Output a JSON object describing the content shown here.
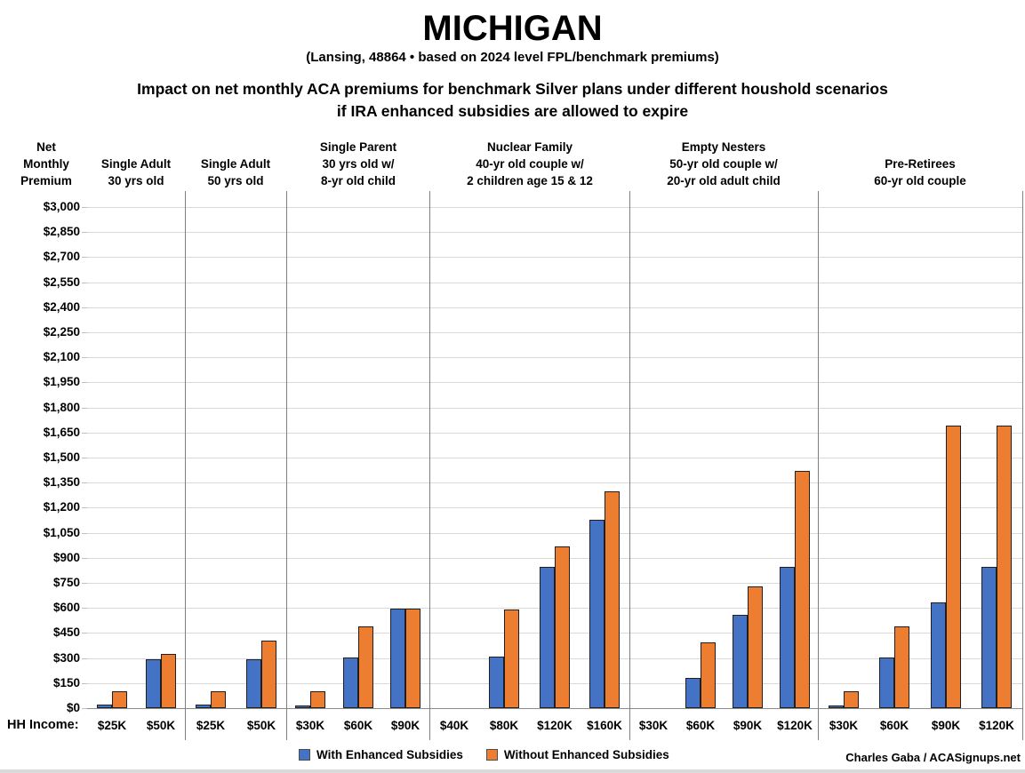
{
  "header": {
    "title": "MICHIGAN",
    "subtitle": "(Lansing, 48864 • based on 2024 level FPL/benchmark premiums)",
    "heading_line1": "Impact on net monthly ACA premiums for benchmark Silver plans under different houshold scenarios",
    "heading_line2": "if IRA enhanced subsidies are allowed to expire"
  },
  "chart_data": {
    "type": "bar",
    "title": "Impact on net monthly ACA premiums for benchmark Silver plans under different houshold scenarios if IRA enhanced subsidies are allowed to expire",
    "y_axis": {
      "label": "Net\nMonthly\nPremium",
      "min": 0,
      "max": 3000,
      "step": 150,
      "ticks": [
        "$0",
        "$150",
        "$300",
        "$450",
        "$600",
        "$750",
        "$900",
        "$1,050",
        "$1,200",
        "$1,350",
        "$1,500",
        "$1,650",
        "$1,800",
        "$1,950",
        "$2,100",
        "$2,250",
        "$2,400",
        "$2,550",
        "$2,700",
        "$2,850",
        "$3,000"
      ]
    },
    "x_axis_label": "HH Income:",
    "grid": true,
    "legend_position": "bottom",
    "series": [
      {
        "name": "With Enhanced Subsidies",
        "color": "#4472C4"
      },
      {
        "name": "Without Enhanced Subsidies",
        "color": "#ED7D31"
      }
    ],
    "groups": [
      {
        "header_lines": [
          "Single Adult",
          "30 yrs old"
        ],
        "categories": [
          "$25K",
          "$50K"
        ],
        "with_enhanced": [
          20,
          295
        ],
        "without_enhanced": [
          100,
          325
        ]
      },
      {
        "header_lines": [
          "Single Adult",
          "50 yrs old"
        ],
        "categories": [
          "$25K",
          "$50K"
        ],
        "with_enhanced": [
          20,
          295
        ],
        "without_enhanced": [
          100,
          405
        ]
      },
      {
        "header_lines": [
          "Single Parent",
          "30 yrs old w/",
          "8-yr old child"
        ],
        "categories": [
          "$30K",
          "$60K",
          "$90K"
        ],
        "with_enhanced": [
          5,
          305,
          595
        ],
        "without_enhanced": [
          100,
          490,
          595
        ]
      },
      {
        "header_lines": [
          "Nuclear Family",
          "40-yr old couple w/",
          "2 children age 15 & 12"
        ],
        "categories": [
          "$40K",
          "$80K",
          "$120K",
          "$160K"
        ],
        "with_enhanced": [
          0,
          310,
          845,
          1130
        ],
        "without_enhanced": [
          0,
          590,
          970,
          1300
        ]
      },
      {
        "header_lines": [
          "Empty Nesters",
          "50-yr old couple w/",
          "20-yr old adult child"
        ],
        "categories": [
          "$30K",
          "$60K",
          "$90K",
          "$120K"
        ],
        "with_enhanced": [
          0,
          180,
          560,
          845
        ],
        "without_enhanced": [
          0,
          395,
          730,
          1420
        ]
      },
      {
        "header_lines": [
          "Pre-Retirees",
          "60-yr old couple"
        ],
        "categories": [
          "$30K",
          "$60K",
          "$90K",
          "$120K"
        ],
        "with_enhanced": [
          5,
          305,
          635,
          845
        ],
        "without_enhanced": [
          100,
          490,
          1690,
          1690
        ]
      }
    ],
    "colors": {
      "with_subsidies": "#4472C4",
      "without_subsidies": "#ED7D31",
      "gridline": "#D9D9D9",
      "axis_line": "#8C8C8C",
      "divider": "#7F7F7F",
      "bar_border": "#1F1F1F"
    }
  },
  "footer": {
    "credit": "Charles Gaba / ACASignups.net"
  }
}
